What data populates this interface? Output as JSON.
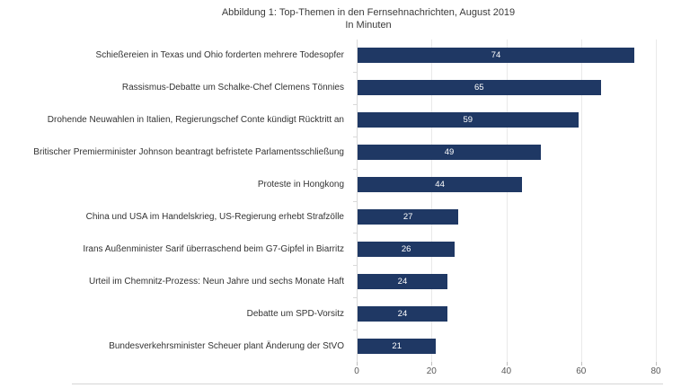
{
  "chart_data": {
    "type": "bar",
    "orientation": "horizontal",
    "title": "Abbildung 1: Top-Themen in den Fernsehnachrichten, August 2019",
    "subtitle": "In Minuten",
    "categories": [
      "Schießereien in Texas und Ohio forderten mehrere Todesopfer",
      "Rassismus-Debatte um Schalke-Chef Clemens Tönnies",
      "Drohende Neuwahlen in Italien, Regierungschef Conte kündigt Rücktritt an",
      "Britischer Premierminister Johnson beantragt befristete Parlamentsschließung",
      "Proteste in Hongkong",
      "China und USA im Handelskrieg, US-Regierung erhebt Strafzölle",
      "Irans Außenminister Sarif überraschend beim G7-Gipfel in Biarritz",
      "Urteil im Chemnitz-Prozess: Neun Jahre und sechs Monate Haft",
      "Debatte um SPD-Vorsitz",
      "Bundesverkehrsminister Scheuer plant Änderung der StVO"
    ],
    "values": [
      74,
      65,
      59,
      49,
      44,
      27,
      26,
      24,
      24,
      21
    ],
    "xlabel": "",
    "ylabel": "",
    "xlim": [
      0,
      80
    ],
    "x_ticks": [
      0,
      20,
      40,
      60,
      80
    ],
    "grid": true,
    "legend": false,
    "bar_color": "#1F3864",
    "value_label_color": "#FFFFFF"
  }
}
